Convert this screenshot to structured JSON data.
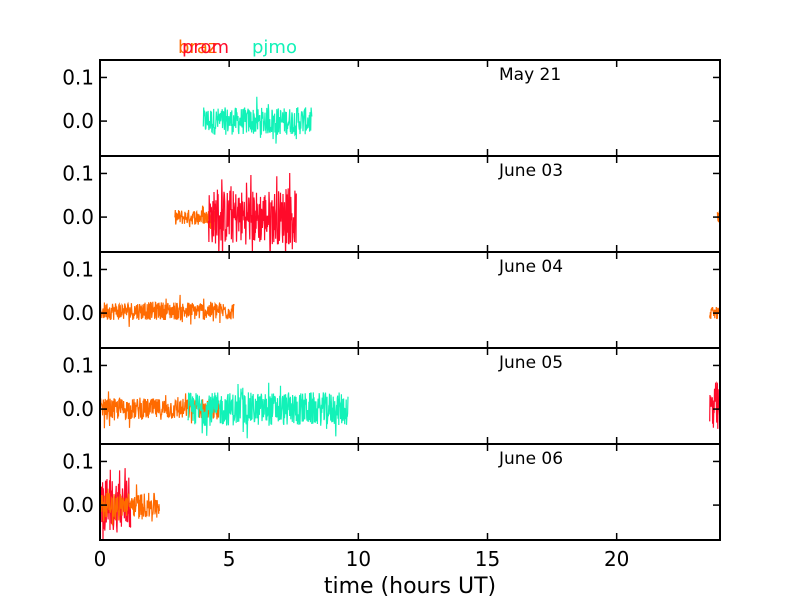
{
  "chart_data": {
    "type": "line",
    "xlabel": "time (hours UT)",
    "xlim": [
      0,
      24
    ],
    "x_ticks": [
      0,
      5,
      10,
      15,
      20
    ],
    "ylim": [
      -0.08,
      0.14
    ],
    "y_ticks": [
      0.0,
      0.1
    ],
    "y_tick_labels": [
      "0.0",
      "0.1"
    ],
    "legend": [
      {
        "name": "braz",
        "color": "#ff6a00"
      },
      {
        "name": "prom",
        "color": "#ff0a2a"
      },
      {
        "name": "pjmo",
        "color": "#12f2b8"
      }
    ],
    "panels": [
      {
        "date": "May 21",
        "series": [
          {
            "name": "pjmo",
            "color": "#12f2b8",
            "x_range": [
              4.0,
              8.2
            ],
            "amplitude": 0.045,
            "mean": 0.0
          }
        ]
      },
      {
        "date": "June 03",
        "series": [
          {
            "name": "braz",
            "color": "#ff6a00",
            "x_range": [
              2.9,
              4.5
            ],
            "amplitude": 0.025,
            "mean": 0.0
          },
          {
            "name": "prom",
            "color": "#ff0a2a",
            "x_range": [
              4.2,
              7.6
            ],
            "amplitude": 0.09,
            "mean": 0.0
          },
          {
            "name": "braz",
            "color": "#ff6a00",
            "x_range": [
              23.9,
              24.0
            ],
            "amplitude": 0.02,
            "mean": 0.0
          }
        ]
      },
      {
        "date": "June 04",
        "series": [
          {
            "name": "braz",
            "color": "#ff6a00",
            "x_range": [
              0.0,
              5.2
            ],
            "amplitude": 0.03,
            "mean": 0.005
          },
          {
            "name": "braz",
            "color": "#ff6a00",
            "x_range": [
              23.6,
              24.0
            ],
            "amplitude": 0.02,
            "mean": 0.0
          }
        ]
      },
      {
        "date": "June 05",
        "series": [
          {
            "name": "braz",
            "color": "#ff6a00",
            "x_range": [
              0.0,
              4.6
            ],
            "amplitude": 0.035,
            "mean": 0.0
          },
          {
            "name": "pjmo",
            "color": "#12f2b8",
            "x_range": [
              3.4,
              9.6
            ],
            "amplitude": 0.055,
            "mean": 0.0
          },
          {
            "name": "prom",
            "color": "#ff0a2a",
            "x_range": [
              23.6,
              24.0
            ],
            "amplitude": 0.09,
            "mean": 0.0
          }
        ]
      },
      {
        "date": "June 06",
        "series": [
          {
            "name": "prom",
            "color": "#ff0a2a",
            "x_range": [
              0.0,
              1.2
            ],
            "amplitude": 0.09,
            "mean": 0.0
          },
          {
            "name": "braz",
            "color": "#ff6a00",
            "x_range": [
              0.0,
              2.3
            ],
            "amplitude": 0.04,
            "mean": 0.0
          }
        ]
      }
    ]
  }
}
